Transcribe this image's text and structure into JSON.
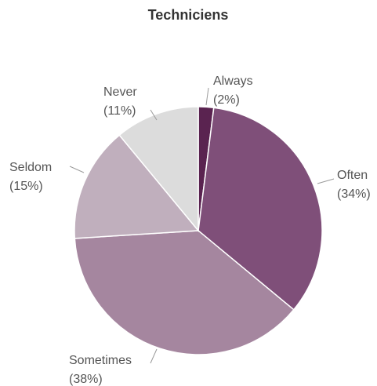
{
  "chart_data": {
    "type": "pie",
    "title": "Techniciens",
    "slices": [
      {
        "label": "Always",
        "pct_label": "(2%)",
        "value": 2,
        "color": "#5a2350"
      },
      {
        "label": "Often",
        "pct_label": "(34%)",
        "value": 34,
        "color": "#7f4f79"
      },
      {
        "label": "Sometimes",
        "pct_label": "(38%)",
        "value": 38,
        "color": "#a5869f"
      },
      {
        "label": "Seldom",
        "pct_label": "(15%)",
        "value": 15,
        "color": "#c0afbd"
      },
      {
        "label": "Never",
        "pct_label": "(11%)",
        "value": 11,
        "color": "#dcdcdc"
      }
    ],
    "legend": "none",
    "start_angle": "12 o'clock, clockwise"
  }
}
